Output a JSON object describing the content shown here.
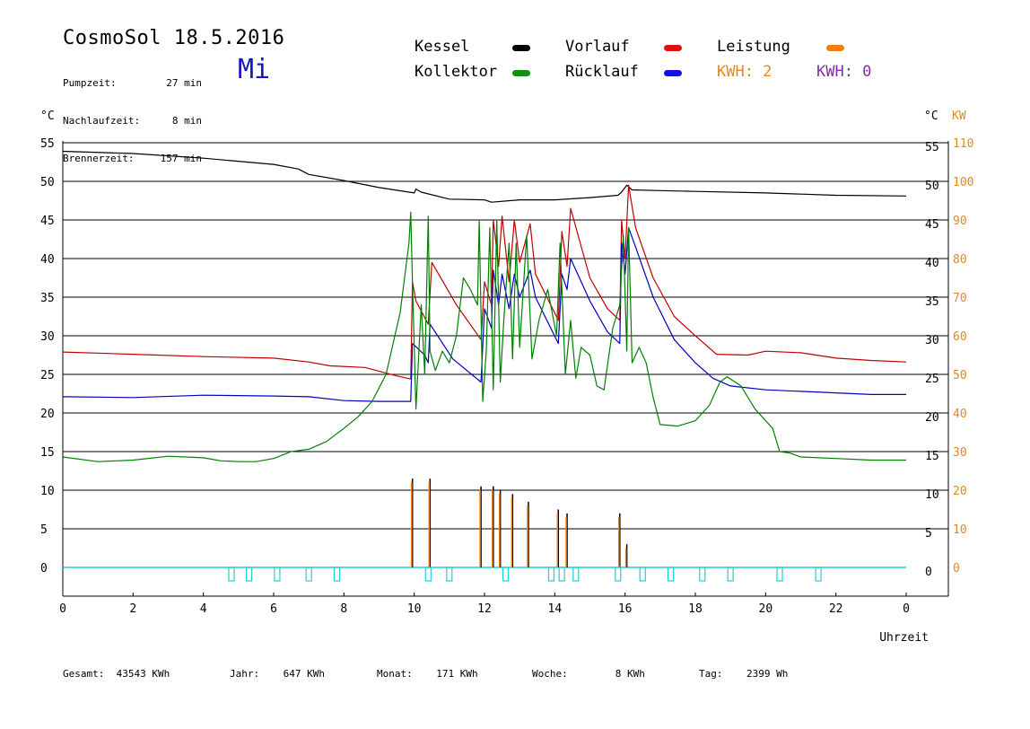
{
  "header": {
    "title": "CosmoSol 18.5.2016",
    "weekday": "Mi",
    "info": [
      {
        "label": "Pumpzeit:",
        "value": "27 min"
      },
      {
        "label": "Nachlaufzeit:",
        "value": "8 min"
      },
      {
        "label": "Brennerzeit:",
        "value": "157 min"
      }
    ]
  },
  "legend": {
    "items": [
      {
        "label": "Kessel",
        "color": "#000000"
      },
      {
        "label": "Vorlauf",
        "color": "#e01010"
      },
      {
        "label": "Leistung",
        "color": "#f08010"
      },
      {
        "label": "Kollektor",
        "color": "#109010"
      },
      {
        "label": "Rücklauf",
        "color": "#1010e0"
      }
    ],
    "kwh_orange": "KWH: 2",
    "kwh_purple": "KWH: 0",
    "kwh_orange_color": "#e08a20",
    "kwh_purple_color": "#8030a0"
  },
  "axes": {
    "left_unit": "°C",
    "right_unit": "°C",
    "right_unit2": "KW",
    "x_label": "Uhrzeit"
  },
  "footer": [
    {
      "label": "Gesamt:",
      "value": "43543 KWh"
    },
    {
      "label": "Jahr:",
      "value": "647 KWh"
    },
    {
      "label": "Monat:",
      "value": "171 KWh"
    },
    {
      "label": "Woche:",
      "value": "8 KWh"
    },
    {
      "label": "Tag:",
      "value": "2399 Wh"
    }
  ],
  "chart_data": {
    "type": "line",
    "title": "CosmoSol 18.5.2016",
    "xlabel": "Uhrzeit",
    "ylabel": "°C",
    "y2label": "KW",
    "xlim": [
      0,
      24
    ],
    "ylim": [
      -3.5,
      55
    ],
    "y2lim": [
      -7,
      110
    ],
    "x_ticks": [
      "0",
      "2",
      "4",
      "6",
      "8",
      "10",
      "12",
      "14",
      "16",
      "18",
      "20",
      "22",
      "0"
    ],
    "y_ticks": [
      0,
      5,
      10,
      15,
      20,
      25,
      30,
      35,
      40,
      45,
      50,
      55
    ],
    "y2_ticks": [
      0,
      10,
      20,
      30,
      40,
      50,
      60,
      70,
      80,
      90,
      100,
      110
    ],
    "grid": true,
    "series": [
      {
        "name": "Kessel",
        "color": "#000000",
        "points": [
          [
            0,
            53.9
          ],
          [
            2,
            53.6
          ],
          [
            4,
            53.0
          ],
          [
            6,
            52.2
          ],
          [
            6.7,
            51.6
          ],
          [
            7.0,
            50.9
          ],
          [
            8,
            50.1
          ],
          [
            9,
            49.2
          ],
          [
            10,
            48.5
          ],
          [
            10.05,
            49.0
          ],
          [
            10.2,
            48.6
          ],
          [
            11,
            47.7
          ],
          [
            12,
            47.6
          ],
          [
            12.2,
            47.3
          ],
          [
            13,
            47.6
          ],
          [
            14,
            47.6
          ],
          [
            15,
            47.9
          ],
          [
            15.8,
            48.2
          ],
          [
            15.9,
            48.6
          ],
          [
            16.05,
            49.5
          ],
          [
            16.2,
            48.9
          ],
          [
            17,
            48.8
          ],
          [
            18,
            48.7
          ],
          [
            20,
            48.5
          ],
          [
            22,
            48.2
          ],
          [
            24,
            48.1
          ]
        ]
      },
      {
        "name": "Vorlauf",
        "color": "#c00000",
        "points": [
          [
            0,
            27.9
          ],
          [
            2,
            27.6
          ],
          [
            4,
            27.3
          ],
          [
            6,
            27.1
          ],
          [
            7,
            26.6
          ],
          [
            7.6,
            26.1
          ],
          [
            8.6,
            25.9
          ],
          [
            9.5,
            24.8
          ],
          [
            9.9,
            24.4
          ],
          [
            9.95,
            37.0
          ],
          [
            10.05,
            34.5
          ],
          [
            10.4,
            31.5
          ],
          [
            10.5,
            39.5
          ],
          [
            11.2,
            34.0
          ],
          [
            11.9,
            29.5
          ],
          [
            12.0,
            37.0
          ],
          [
            12.2,
            34.0
          ],
          [
            12.25,
            45.0
          ],
          [
            12.4,
            39.0
          ],
          [
            12.5,
            45.5
          ],
          [
            12.7,
            37.0
          ],
          [
            12.85,
            45.0
          ],
          [
            13.0,
            39.5
          ],
          [
            13.3,
            44.5
          ],
          [
            13.45,
            38.0
          ],
          [
            14.1,
            32.0
          ],
          [
            14.2,
            43.5
          ],
          [
            14.35,
            39.0
          ],
          [
            14.45,
            46.5
          ],
          [
            15.0,
            37.5
          ],
          [
            15.5,
            33.5
          ],
          [
            15.85,
            32.0
          ],
          [
            15.9,
            45.0
          ],
          [
            16.0,
            40.0
          ],
          [
            16.1,
            49.5
          ],
          [
            16.3,
            44.0
          ],
          [
            16.8,
            37.5
          ],
          [
            17.4,
            32.5
          ],
          [
            18,
            30.0
          ],
          [
            18.6,
            27.6
          ],
          [
            19.5,
            27.5
          ],
          [
            20,
            28.0
          ],
          [
            21,
            27.8
          ],
          [
            22,
            27.1
          ],
          [
            23,
            26.8
          ],
          [
            24,
            26.6
          ]
        ]
      },
      {
        "name": "Rücklauf",
        "color": "#0000c0",
        "points": [
          [
            0,
            22.1
          ],
          [
            2,
            22.0
          ],
          [
            4,
            22.3
          ],
          [
            6,
            22.2
          ],
          [
            7,
            22.1
          ],
          [
            8,
            21.6
          ],
          [
            9,
            21.5
          ],
          [
            9.9,
            21.5
          ],
          [
            9.95,
            29.0
          ],
          [
            10.3,
            27.5
          ],
          [
            10.4,
            26.5
          ],
          [
            10.45,
            31.5
          ],
          [
            11.1,
            27.0
          ],
          [
            11.9,
            24.0
          ],
          [
            12.0,
            33.5
          ],
          [
            12.2,
            31.0
          ],
          [
            12.25,
            38.5
          ],
          [
            12.4,
            34.0
          ],
          [
            12.5,
            38.0
          ],
          [
            12.7,
            33.5
          ],
          [
            12.85,
            38.0
          ],
          [
            13.0,
            35.0
          ],
          [
            13.3,
            38.5
          ],
          [
            13.45,
            35.0
          ],
          [
            14.1,
            29.0
          ],
          [
            14.2,
            38.0
          ],
          [
            14.35,
            36.0
          ],
          [
            14.45,
            40.0
          ],
          [
            15.0,
            34.5
          ],
          [
            15.5,
            30.5
          ],
          [
            15.85,
            29.0
          ],
          [
            15.9,
            42.0
          ],
          [
            16.0,
            38.0
          ],
          [
            16.1,
            44.0
          ],
          [
            16.3,
            41.5
          ],
          [
            16.8,
            35.0
          ],
          [
            17.4,
            29.5
          ],
          [
            18,
            26.5
          ],
          [
            18.5,
            24.5
          ],
          [
            19,
            23.5
          ],
          [
            20,
            23.0
          ],
          [
            21,
            22.8
          ],
          [
            22,
            22.6
          ],
          [
            23,
            22.4
          ],
          [
            24,
            22.4
          ]
        ]
      },
      {
        "name": "Kollektor",
        "color": "#008000",
        "points": [
          [
            0,
            14.3
          ],
          [
            1,
            13.7
          ],
          [
            2,
            13.9
          ],
          [
            3,
            14.4
          ],
          [
            4,
            14.2
          ],
          [
            4.5,
            13.8
          ],
          [
            5,
            13.7
          ],
          [
            5.5,
            13.7
          ],
          [
            6,
            14.1
          ],
          [
            6.5,
            15.0
          ],
          [
            7,
            15.3
          ],
          [
            7.5,
            16.3
          ],
          [
            8,
            18.0
          ],
          [
            8.4,
            19.5
          ],
          [
            8.8,
            21.5
          ],
          [
            9.2,
            25.0
          ],
          [
            9.6,
            33.0
          ],
          [
            9.85,
            42.0
          ],
          [
            9.9,
            46.0
          ],
          [
            9.95,
            37.0
          ],
          [
            10.05,
            20.5
          ],
          [
            10.2,
            34.0
          ],
          [
            10.3,
            25.0
          ],
          [
            10.4,
            45.5
          ],
          [
            10.45,
            28.0
          ],
          [
            10.6,
            25.5
          ],
          [
            10.8,
            28.0
          ],
          [
            11.0,
            26.5
          ],
          [
            11.2,
            30.0
          ],
          [
            11.4,
            37.5
          ],
          [
            11.6,
            36.0
          ],
          [
            11.8,
            34.0
          ],
          [
            11.85,
            45.0
          ],
          [
            11.95,
            21.5
          ],
          [
            12.05,
            28.0
          ],
          [
            12.15,
            44.0
          ],
          [
            12.25,
            23.0
          ],
          [
            12.35,
            45.0
          ],
          [
            12.45,
            24.0
          ],
          [
            12.55,
            32.0
          ],
          [
            12.7,
            42.0
          ],
          [
            12.8,
            27.0
          ],
          [
            12.9,
            42.0
          ],
          [
            13.0,
            28.5
          ],
          [
            13.2,
            43.0
          ],
          [
            13.35,
            27.0
          ],
          [
            13.55,
            32.0
          ],
          [
            13.8,
            36.0
          ],
          [
            14.05,
            30.0
          ],
          [
            14.15,
            42.0
          ],
          [
            14.3,
            25.0
          ],
          [
            14.45,
            32.0
          ],
          [
            14.6,
            24.5
          ],
          [
            14.75,
            28.5
          ],
          [
            15.0,
            27.5
          ],
          [
            15.2,
            23.5
          ],
          [
            15.4,
            23.0
          ],
          [
            15.65,
            31.0
          ],
          [
            15.85,
            34.0
          ],
          [
            15.95,
            43.0
          ],
          [
            16.05,
            28.0
          ],
          [
            16.1,
            44.0
          ],
          [
            16.2,
            26.5
          ],
          [
            16.4,
            28.5
          ],
          [
            16.6,
            26.5
          ],
          [
            16.8,
            22.0
          ],
          [
            17.0,
            18.5
          ],
          [
            17.5,
            18.3
          ],
          [
            18.0,
            19.0
          ],
          [
            18.4,
            21.0
          ],
          [
            18.7,
            24.0
          ],
          [
            18.9,
            24.7
          ],
          [
            19.3,
            23.5
          ],
          [
            19.7,
            20.5
          ],
          [
            20.2,
            18.0
          ],
          [
            20.4,
            15.0
          ],
          [
            20.7,
            14.8
          ],
          [
            21,
            14.3
          ],
          [
            22,
            14.1
          ],
          [
            23,
            13.9
          ],
          [
            24,
            13.9
          ]
        ]
      }
    ],
    "leistung_kw": [
      {
        "x": 9.95,
        "y": 11.5
      },
      {
        "x": 10.45,
        "y": 11.5
      },
      {
        "x": 11.9,
        "y": 10.5
      },
      {
        "x": 12.25,
        "y": 10.5
      },
      {
        "x": 12.45,
        "y": 10.0
      },
      {
        "x": 12.8,
        "y": 9.5
      },
      {
        "x": 13.25,
        "y": 8.5
      },
      {
        "x": 14.1,
        "y": 7.5
      },
      {
        "x": 14.35,
        "y": 7.0
      },
      {
        "x": 15.85,
        "y": 7.0
      },
      {
        "x": 16.05,
        "y": 3.0
      }
    ],
    "pump_marks_x": [
      4.8,
      5.3,
      6.1,
      7.0,
      7.8,
      10.4,
      11.0,
      12.6,
      13.9,
      14.2,
      14.6,
      15.8,
      16.5,
      17.3,
      18.2,
      19.0,
      20.4,
      21.5
    ]
  }
}
